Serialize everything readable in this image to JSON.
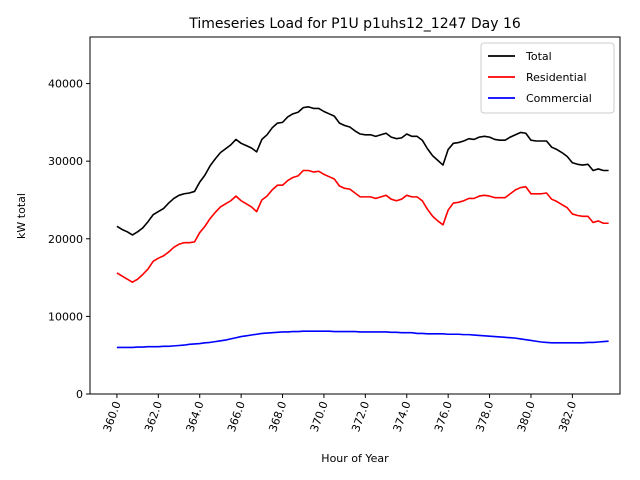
{
  "chart_data": {
    "type": "line",
    "title": "Timeseries Load for P1U p1uhs12_1247  Day 16",
    "xlabel": "Hour of Year",
    "ylabel": "kW total",
    "xlim": [
      358.7,
      384.3
    ],
    "ylim": [
      0,
      46000
    ],
    "xticks": [
      "360.0",
      "362.0",
      "364.0",
      "366.0",
      "368.0",
      "370.0",
      "372.0",
      "374.0",
      "376.0",
      "378.0",
      "380.0",
      "382.0"
    ],
    "yticks": [
      "0",
      "10000",
      "20000",
      "30000",
      "40000"
    ],
    "legend_position": "top-right",
    "x": [
      360.0,
      360.25,
      360.5,
      360.75,
      361.0,
      361.25,
      361.5,
      361.75,
      362.0,
      362.25,
      362.5,
      362.75,
      363.0,
      363.25,
      363.5,
      363.75,
      364.0,
      364.25,
      364.5,
      364.75,
      365.0,
      365.25,
      365.5,
      365.75,
      366.0,
      366.25,
      366.5,
      366.75,
      367.0,
      367.25,
      367.5,
      367.75,
      368.0,
      368.25,
      368.5,
      368.75,
      369.0,
      369.25,
      369.5,
      369.75,
      370.0,
      370.25,
      370.5,
      370.75,
      371.0,
      371.25,
      371.5,
      371.75,
      372.0,
      372.25,
      372.5,
      372.75,
      373.0,
      373.25,
      373.5,
      373.75,
      374.0,
      374.25,
      374.5,
      374.75,
      375.0,
      375.25,
      375.5,
      375.75,
      376.0,
      376.25,
      376.5,
      376.75,
      377.0,
      377.25,
      377.5,
      377.75,
      378.0,
      378.25,
      378.5,
      378.75,
      379.0,
      379.25,
      379.5,
      379.75,
      380.0,
      380.25,
      380.5,
      380.75,
      381.0,
      381.25,
      381.5,
      381.75,
      382.0,
      382.25,
      382.5,
      382.75,
      383.0,
      383.25,
      383.5,
      383.75
    ],
    "series": [
      {
        "name": "Total",
        "color": "#000000",
        "values": [
          21600,
          21200,
          20900,
          20500,
          20900,
          21400,
          22200,
          23100,
          23500,
          23900,
          24600,
          25200,
          25600,
          25800,
          25900,
          26100,
          27300,
          28200,
          29400,
          30300,
          31100,
          31600,
          32100,
          32800,
          32300,
          32000,
          31700,
          31200,
          32800,
          33400,
          34300,
          34900,
          35000,
          35700,
          36100,
          36300,
          36900,
          37000,
          36800,
          36800,
          36400,
          36100,
          35800,
          34900,
          34600,
          34400,
          33900,
          33500,
          33400,
          33400,
          33200,
          33400,
          33600,
          33100,
          32900,
          33000,
          33500,
          33200,
          33200,
          32700,
          31600,
          30700,
          30100,
          29500,
          31500,
          32300,
          32400,
          32600,
          32900,
          32800,
          33100,
          33200,
          33100,
          32800,
          32700,
          32700,
          33100,
          33400,
          33700,
          33600,
          32700,
          32600,
          32600,
          32600,
          31800,
          31500,
          31100,
          30600,
          29800,
          29600,
          29500,
          29600,
          28800,
          29000,
          28800,
          28800
        ]
      },
      {
        "name": "Residential",
        "color": "#ff0000",
        "values": [
          15600,
          15200,
          14800,
          14400,
          14800,
          15400,
          16100,
          17100,
          17500,
          17800,
          18300,
          18900,
          19300,
          19500,
          19500,
          19600,
          20800,
          21600,
          22600,
          23400,
          24100,
          24500,
          24900,
          25500,
          24900,
          24500,
          24100,
          23500,
          25000,
          25500,
          26300,
          26900,
          26900,
          27500,
          27900,
          28100,
          28800,
          28800,
          28600,
          28700,
          28300,
          28000,
          27700,
          26800,
          26500,
          26400,
          25900,
          25400,
          25400,
          25400,
          25200,
          25400,
          25600,
          25100,
          24900,
          25100,
          25600,
          25400,
          25400,
          24900,
          23800,
          22900,
          22300,
          21800,
          23700,
          24600,
          24700,
          24900,
          25200,
          25200,
          25500,
          25600,
          25500,
          25300,
          25300,
          25300,
          25800,
          26300,
          26600,
          26700,
          25800,
          25800,
          25800,
          25900,
          25100,
          24800,
          24400,
          24000,
          23200,
          23000,
          22900,
          22900,
          22100,
          22300,
          22000,
          22000
        ]
      },
      {
        "name": "Commercial",
        "color": "#0000ff",
        "values": [
          6000,
          6000,
          6000,
          6000,
          6050,
          6050,
          6100,
          6100,
          6100,
          6150,
          6150,
          6200,
          6250,
          6300,
          6400,
          6450,
          6500,
          6600,
          6650,
          6750,
          6850,
          6950,
          7100,
          7250,
          7400,
          7500,
          7600,
          7700,
          7800,
          7850,
          7900,
          7950,
          8000,
          8000,
          8050,
          8050,
          8100,
          8100,
          8100,
          8100,
          8100,
          8100,
          8050,
          8050,
          8050,
          8050,
          8050,
          8000,
          8000,
          8000,
          8000,
          8000,
          8000,
          7950,
          7950,
          7900,
          7900,
          7900,
          7800,
          7800,
          7750,
          7750,
          7750,
          7750,
          7700,
          7700,
          7700,
          7650,
          7650,
          7600,
          7550,
          7500,
          7450,
          7400,
          7350,
          7300,
          7250,
          7200,
          7100,
          7000,
          6900,
          6800,
          6700,
          6650,
          6600,
          6600,
          6600,
          6600,
          6600,
          6600,
          6600,
          6650,
          6650,
          6700,
          6750,
          6800
        ]
      }
    ]
  }
}
